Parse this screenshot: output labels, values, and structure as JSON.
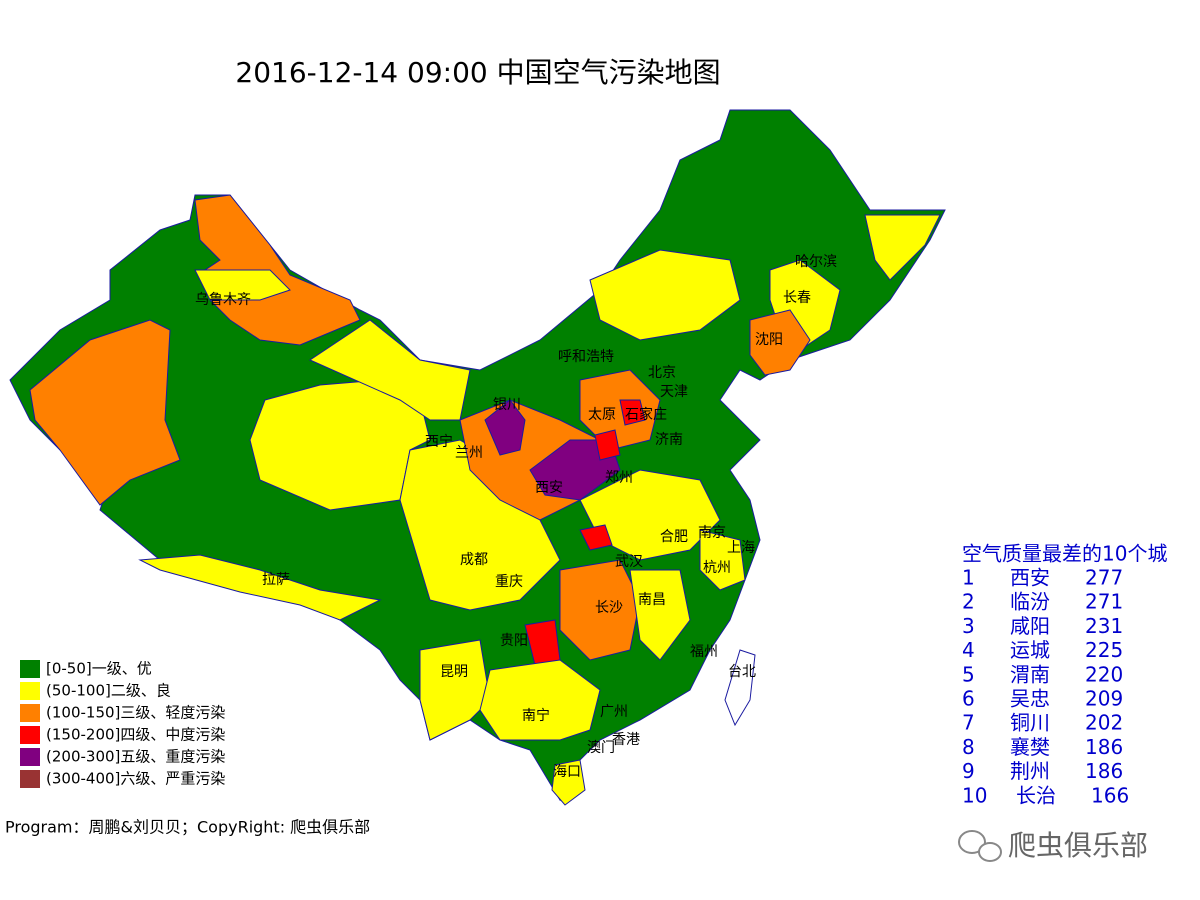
{
  "title": "2016-12-14 09:00 中国空气污染地图",
  "cities": [
    "乌鲁木齐",
    "拉萨",
    "西宁",
    "兰州",
    "银川",
    "呼和浩特",
    "北京",
    "天津",
    "石家庄",
    "太原",
    "济南",
    "郑州",
    "西安",
    "成都",
    "重庆",
    "武汉",
    "合肥",
    "南京",
    "上海",
    "杭州",
    "长沙",
    "南昌",
    "贵阳",
    "昆明",
    "南宁",
    "广州",
    "澳门",
    "香港",
    "海口",
    "福州",
    "台北",
    "沈阳",
    "长春",
    "哈尔滨"
  ],
  "legend": [
    {
      "label": "[0-50]一级、优",
      "color": "#008000"
    },
    {
      "label": "(50-100]二级、良",
      "color": "#ffff00"
    },
    {
      "label": "(100-150]三级、轻度污染",
      "color": "#ff8000"
    },
    {
      "label": "(150-200]四级、中度污染",
      "color": "#ff0000"
    },
    {
      "label": "(200-300]五级、重度污染",
      "color": "#800080"
    },
    {
      "label": "(300-400]六级、严重污染",
      "color": "#993333"
    }
  ],
  "ranking": {
    "title": "空气质量最差的10个城",
    "rows": [
      [
        1,
        "西安",
        277
      ],
      [
        2,
        "临汾",
        271
      ],
      [
        3,
        "咸阳",
        231
      ],
      [
        4,
        "运城",
        225
      ],
      [
        5,
        "渭南",
        220
      ],
      [
        6,
        "吴忠",
        209
      ],
      [
        7,
        "铜川",
        202
      ],
      [
        8,
        "襄樊",
        186
      ],
      [
        9,
        "荆州",
        186
      ],
      [
        10,
        "长治",
        166
      ]
    ]
  },
  "footer": "Program：周鹏&刘贝贝；CopyRight: 爬虫俱乐部",
  "watermark": "爬虫俱乐部"
}
